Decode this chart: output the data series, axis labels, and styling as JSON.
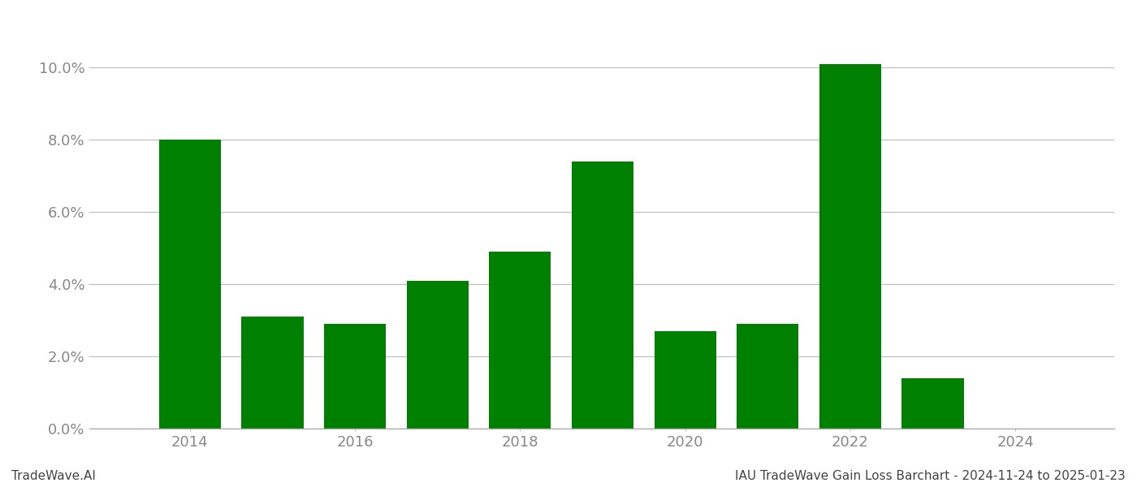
{
  "years": [
    2014,
    2015,
    2016,
    2017,
    2018,
    2019,
    2020,
    2021,
    2022,
    2023
  ],
  "values": [
    0.08,
    0.031,
    0.029,
    0.041,
    0.049,
    0.074,
    0.027,
    0.029,
    0.101,
    0.014
  ],
  "bar_color": "#008000",
  "ylim": [
    0,
    0.112
  ],
  "yticks": [
    0.0,
    0.02,
    0.04,
    0.06,
    0.08,
    0.1
  ],
  "xtick_years": [
    2014,
    2016,
    2018,
    2020,
    2022,
    2024
  ],
  "xlim": [
    2012.8,
    2025.2
  ],
  "footer_left": "TradeWave.AI",
  "footer_right": "IAU TradeWave Gain Loss Barchart - 2024-11-24 to 2025-01-23",
  "background_color": "#ffffff",
  "grid_color": "#bbbbbb",
  "bar_width": 0.75,
  "tick_label_color": "#888888",
  "tick_label_fontsize": 13,
  "footer_fontsize": 11
}
